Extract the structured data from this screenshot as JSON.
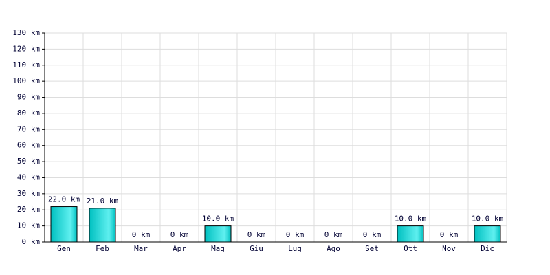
{
  "chart_data": {
    "type": "bar",
    "categories": [
      "Gen",
      "Feb",
      "Mar",
      "Apr",
      "Mag",
      "Giu",
      "Lug",
      "Ago",
      "Set",
      "Ott",
      "Nov",
      "Dic"
    ],
    "values": [
      22,
      21,
      0,
      0,
      10,
      0,
      0,
      0,
      0,
      10,
      0,
      10
    ],
    "value_labels": [
      "22.0 km",
      "21.0 km",
      "0 km",
      "0 km",
      "10.0 km",
      "0 km",
      "0 km",
      "0 km",
      "0 km",
      "10.0 km",
      "0 km",
      "10.0 km"
    ],
    "color": "#00c0c0",
    "ylim": [
      0,
      130
    ],
    "yticks": [
      {
        "value": 0,
        "label": "0 km"
      },
      {
        "value": 10,
        "label": "10 km"
      },
      {
        "value": 20,
        "label": "20 km"
      },
      {
        "value": 30,
        "label": "30 km"
      },
      {
        "value": 40,
        "label": "40 km"
      },
      {
        "value": 50,
        "label": "50 km"
      },
      {
        "value": 60,
        "label": "60 km"
      },
      {
        "value": 70,
        "label": "70 km"
      },
      {
        "value": 80,
        "label": "80 km"
      },
      {
        "value": 90,
        "label": "90 km"
      },
      {
        "value": 100,
        "label": "100 km"
      },
      {
        "value": 110,
        "label": "110 km"
      },
      {
        "value": 120,
        "label": "120 km"
      },
      {
        "value": 130,
        "label": "130 km"
      }
    ],
    "grid": true
  }
}
